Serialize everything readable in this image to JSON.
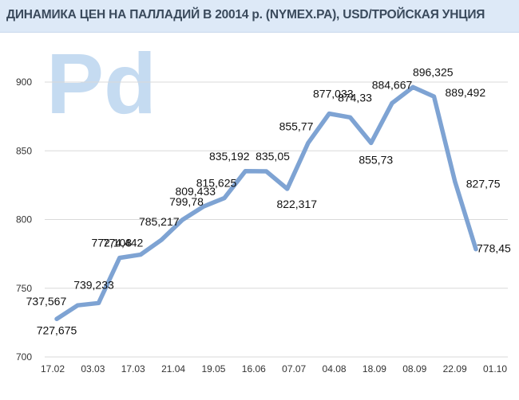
{
  "chart_data": {
    "type": "line",
    "title": "ДИНАМИКА ЦЕН НА ПАЛЛАДИЙ В 20014 р. (NYMEX.PA), USD/ТРОЙСКАЯ УНЦИЯ",
    "watermark": "Pd",
    "xlabel": "",
    "ylabel": "",
    "ylim": [
      700,
      900
    ],
    "yticks": [
      700,
      750,
      800,
      850,
      900
    ],
    "grid": true,
    "x_tick_labels": [
      "17.02",
      "03.03",
      "17.03",
      "21.04",
      "19.05",
      "16.06",
      "07.07",
      "04.08",
      "18.09",
      "08.09",
      "22.09",
      "01.10"
    ],
    "series": [
      {
        "name": "Pd",
        "color": "#7ea3d3",
        "values": [
          727.675,
          737.567,
          739.233,
          772.108,
          774.442,
          785.217,
          799.78,
          809.433,
          815.625,
          835.192,
          835.05,
          822.317,
          855.77,
          877.033,
          874.33,
          855.73,
          884.667,
          896.325,
          889.492,
          827.75,
          778.45
        ],
        "labels": [
          "727,675",
          "737,567",
          "739,233",
          "772,108",
          "774,442",
          "785,217",
          "799,78",
          "809,433",
          "815,625",
          "835,192",
          "835,05",
          "822,317",
          "855,77",
          "877,033",
          "874,33",
          "855,73",
          "884,667",
          "896,325",
          "889,492",
          "827,75",
          "778,45"
        ]
      }
    ]
  }
}
